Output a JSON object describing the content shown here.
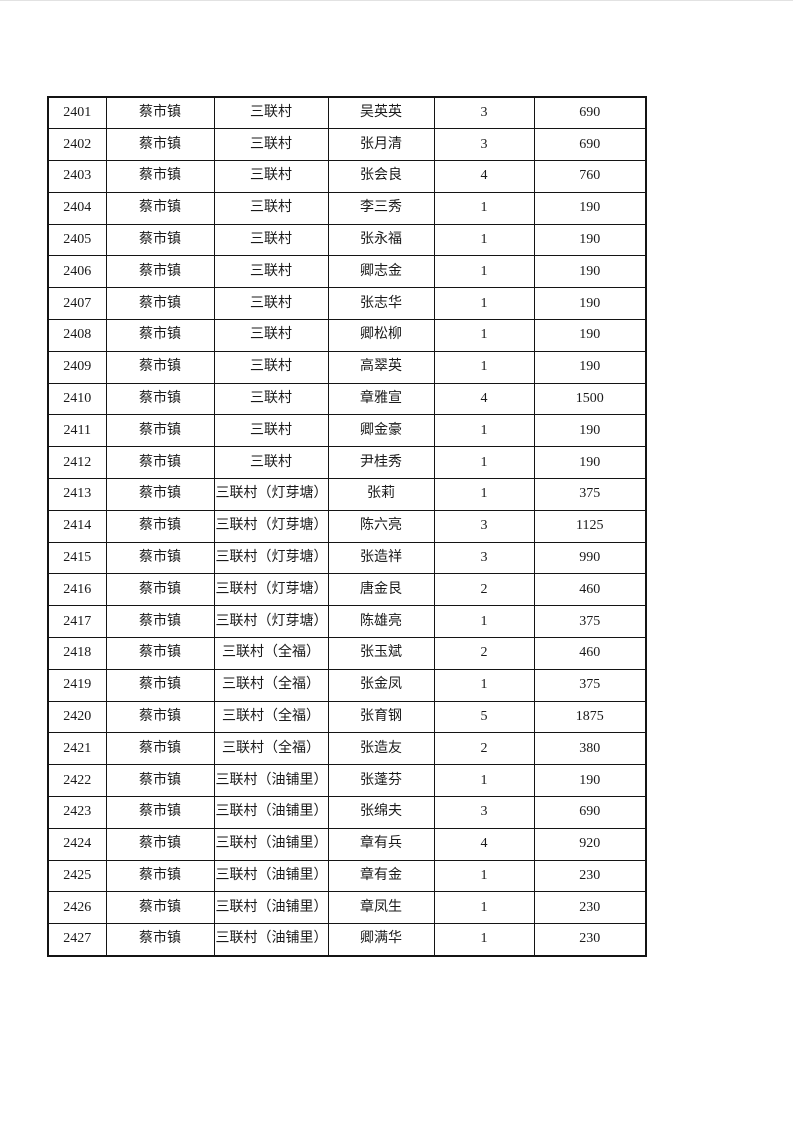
{
  "page": {
    "background": "#ffffff",
    "top_divider_color": "#e2e2e2"
  },
  "table": {
    "border_color": "#141414",
    "text_color": "#1a1a1a",
    "columns": [
      "serial-number",
      "town",
      "village",
      "beneficiary-name",
      "person-count",
      "amount"
    ],
    "rows": [
      [
        "2401",
        "蔡市镇",
        "三联村",
        "吴英英",
        "3",
        "690"
      ],
      [
        "2402",
        "蔡市镇",
        "三联村",
        "张月清",
        "3",
        "690"
      ],
      [
        "2403",
        "蔡市镇",
        "三联村",
        "张会良",
        "4",
        "760"
      ],
      [
        "2404",
        "蔡市镇",
        "三联村",
        "李三秀",
        "1",
        "190"
      ],
      [
        "2405",
        "蔡市镇",
        "三联村",
        "张永福",
        "1",
        "190"
      ],
      [
        "2406",
        "蔡市镇",
        "三联村",
        "卿志金",
        "1",
        "190"
      ],
      [
        "2407",
        "蔡市镇",
        "三联村",
        "张志华",
        "1",
        "190"
      ],
      [
        "2408",
        "蔡市镇",
        "三联村",
        "卿松柳",
        "1",
        "190"
      ],
      [
        "2409",
        "蔡市镇",
        "三联村",
        "高翠英",
        "1",
        "190"
      ],
      [
        "2410",
        "蔡市镇",
        "三联村",
        "章雅宣",
        "4",
        "1500"
      ],
      [
        "2411",
        "蔡市镇",
        "三联村",
        "卿金豪",
        "1",
        "190"
      ],
      [
        "2412",
        "蔡市镇",
        "三联村",
        "尹桂秀",
        "1",
        "190"
      ],
      [
        "2413",
        "蔡市镇",
        "三联村（灯芽塘）",
        "张莉",
        "1",
        "375"
      ],
      [
        "2414",
        "蔡市镇",
        "三联村（灯芽塘）",
        "陈六亮",
        "3",
        "1125"
      ],
      [
        "2415",
        "蔡市镇",
        "三联村（灯芽塘）",
        "张造祥",
        "3",
        "990"
      ],
      [
        "2416",
        "蔡市镇",
        "三联村（灯芽塘）",
        "唐金艮",
        "2",
        "460"
      ],
      [
        "2417",
        "蔡市镇",
        "三联村（灯芽塘）",
        "陈雄亮",
        "1",
        "375"
      ],
      [
        "2418",
        "蔡市镇",
        "三联村（全福）",
        "张玉斌",
        "2",
        "460"
      ],
      [
        "2419",
        "蔡市镇",
        "三联村（全福）",
        "张金凤",
        "1",
        "375"
      ],
      [
        "2420",
        "蔡市镇",
        "三联村（全福）",
        "张育钢",
        "5",
        "1875"
      ],
      [
        "2421",
        "蔡市镇",
        "三联村（全福）",
        "张造友",
        "2",
        "380"
      ],
      [
        "2422",
        "蔡市镇",
        "三联村（油铺里）",
        "张蓬芬",
        "1",
        "190"
      ],
      [
        "2423",
        "蔡市镇",
        "三联村（油铺里）",
        "张绵夫",
        "3",
        "690"
      ],
      [
        "2424",
        "蔡市镇",
        "三联村（油铺里）",
        "章有兵",
        "4",
        "920"
      ],
      [
        "2425",
        "蔡市镇",
        "三联村（油铺里）",
        "章有金",
        "1",
        "230"
      ],
      [
        "2426",
        "蔡市镇",
        "三联村（油铺里）",
        "章凤生",
        "1",
        "230"
      ],
      [
        "2427",
        "蔡市镇",
        "三联村（油铺里）",
        "卿满华",
        "1",
        "230"
      ]
    ]
  }
}
